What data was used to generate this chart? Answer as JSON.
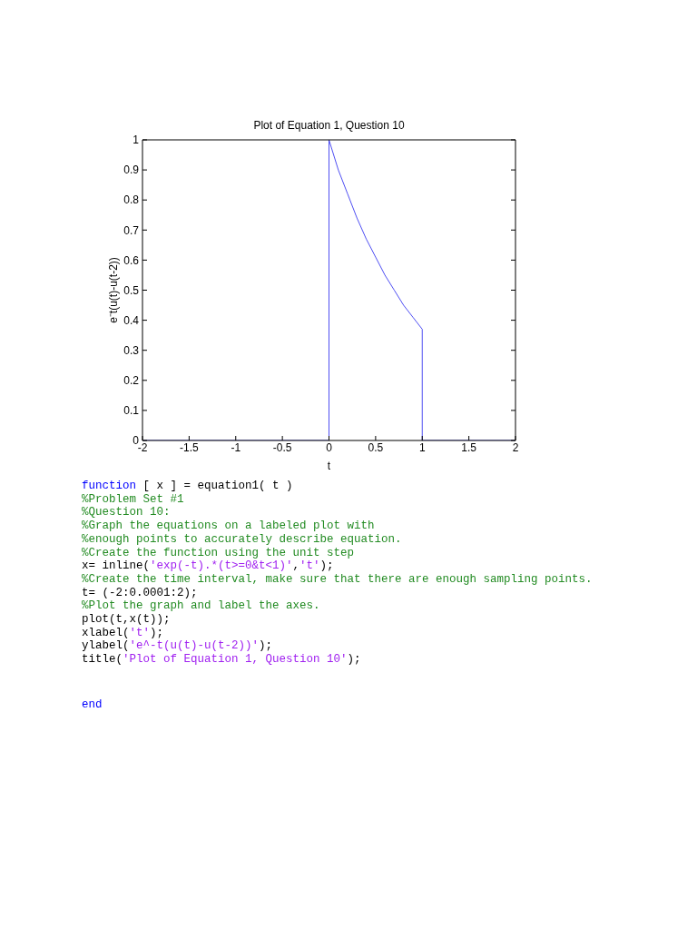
{
  "chart_data": {
    "type": "line",
    "title": "Plot of Equation 1, Question 10",
    "xlabel": "t",
    "ylabel": "e⁻t(u(t)-u(t-2))",
    "x": [
      -2,
      0,
      0,
      0.1,
      0.2,
      0.3,
      0.4,
      0.5,
      0.6,
      0.7,
      0.8,
      0.9,
      1,
      1,
      2
    ],
    "values": [
      0,
      0,
      1,
      0.9,
      0.82,
      0.74,
      0.67,
      0.61,
      0.55,
      0.5,
      0.45,
      0.41,
      0.37,
      0,
      0
    ],
    "color": "#3a3af0",
    "xlim": [
      -2,
      2
    ],
    "ylim": [
      0,
      1
    ],
    "xticks": [
      -2,
      -1.5,
      -1,
      -0.5,
      0,
      0.5,
      1,
      1.5,
      2
    ],
    "yticks": [
      0,
      0.1,
      0.2,
      0.3,
      0.4,
      0.5,
      0.6,
      0.7,
      0.8,
      0.9,
      1
    ],
    "annotations": [
      "function [ x ] = equation1( t )",
      "%Problem Set #1",
      "%Question 10:",
      "%Graph the equations on a labeled plot with",
      "%enough points to accurately describe equation.",
      "%Create the function using the unit step",
      "x= inline('exp(-t).*(t>=0&t<1)','t');",
      "%Create the time interval, make sure that there are enough sampling points.",
      "t= (-2:0.0001:2);",
      "%Plot the graph and label the axes.",
      "plot(t,x(t));",
      "xlabel('t');",
      "ylabel('e^-t(u(t)-u(t-2))');",
      "title('Plot of Equation 1, Question 10');",
      "end"
    ]
  }
}
